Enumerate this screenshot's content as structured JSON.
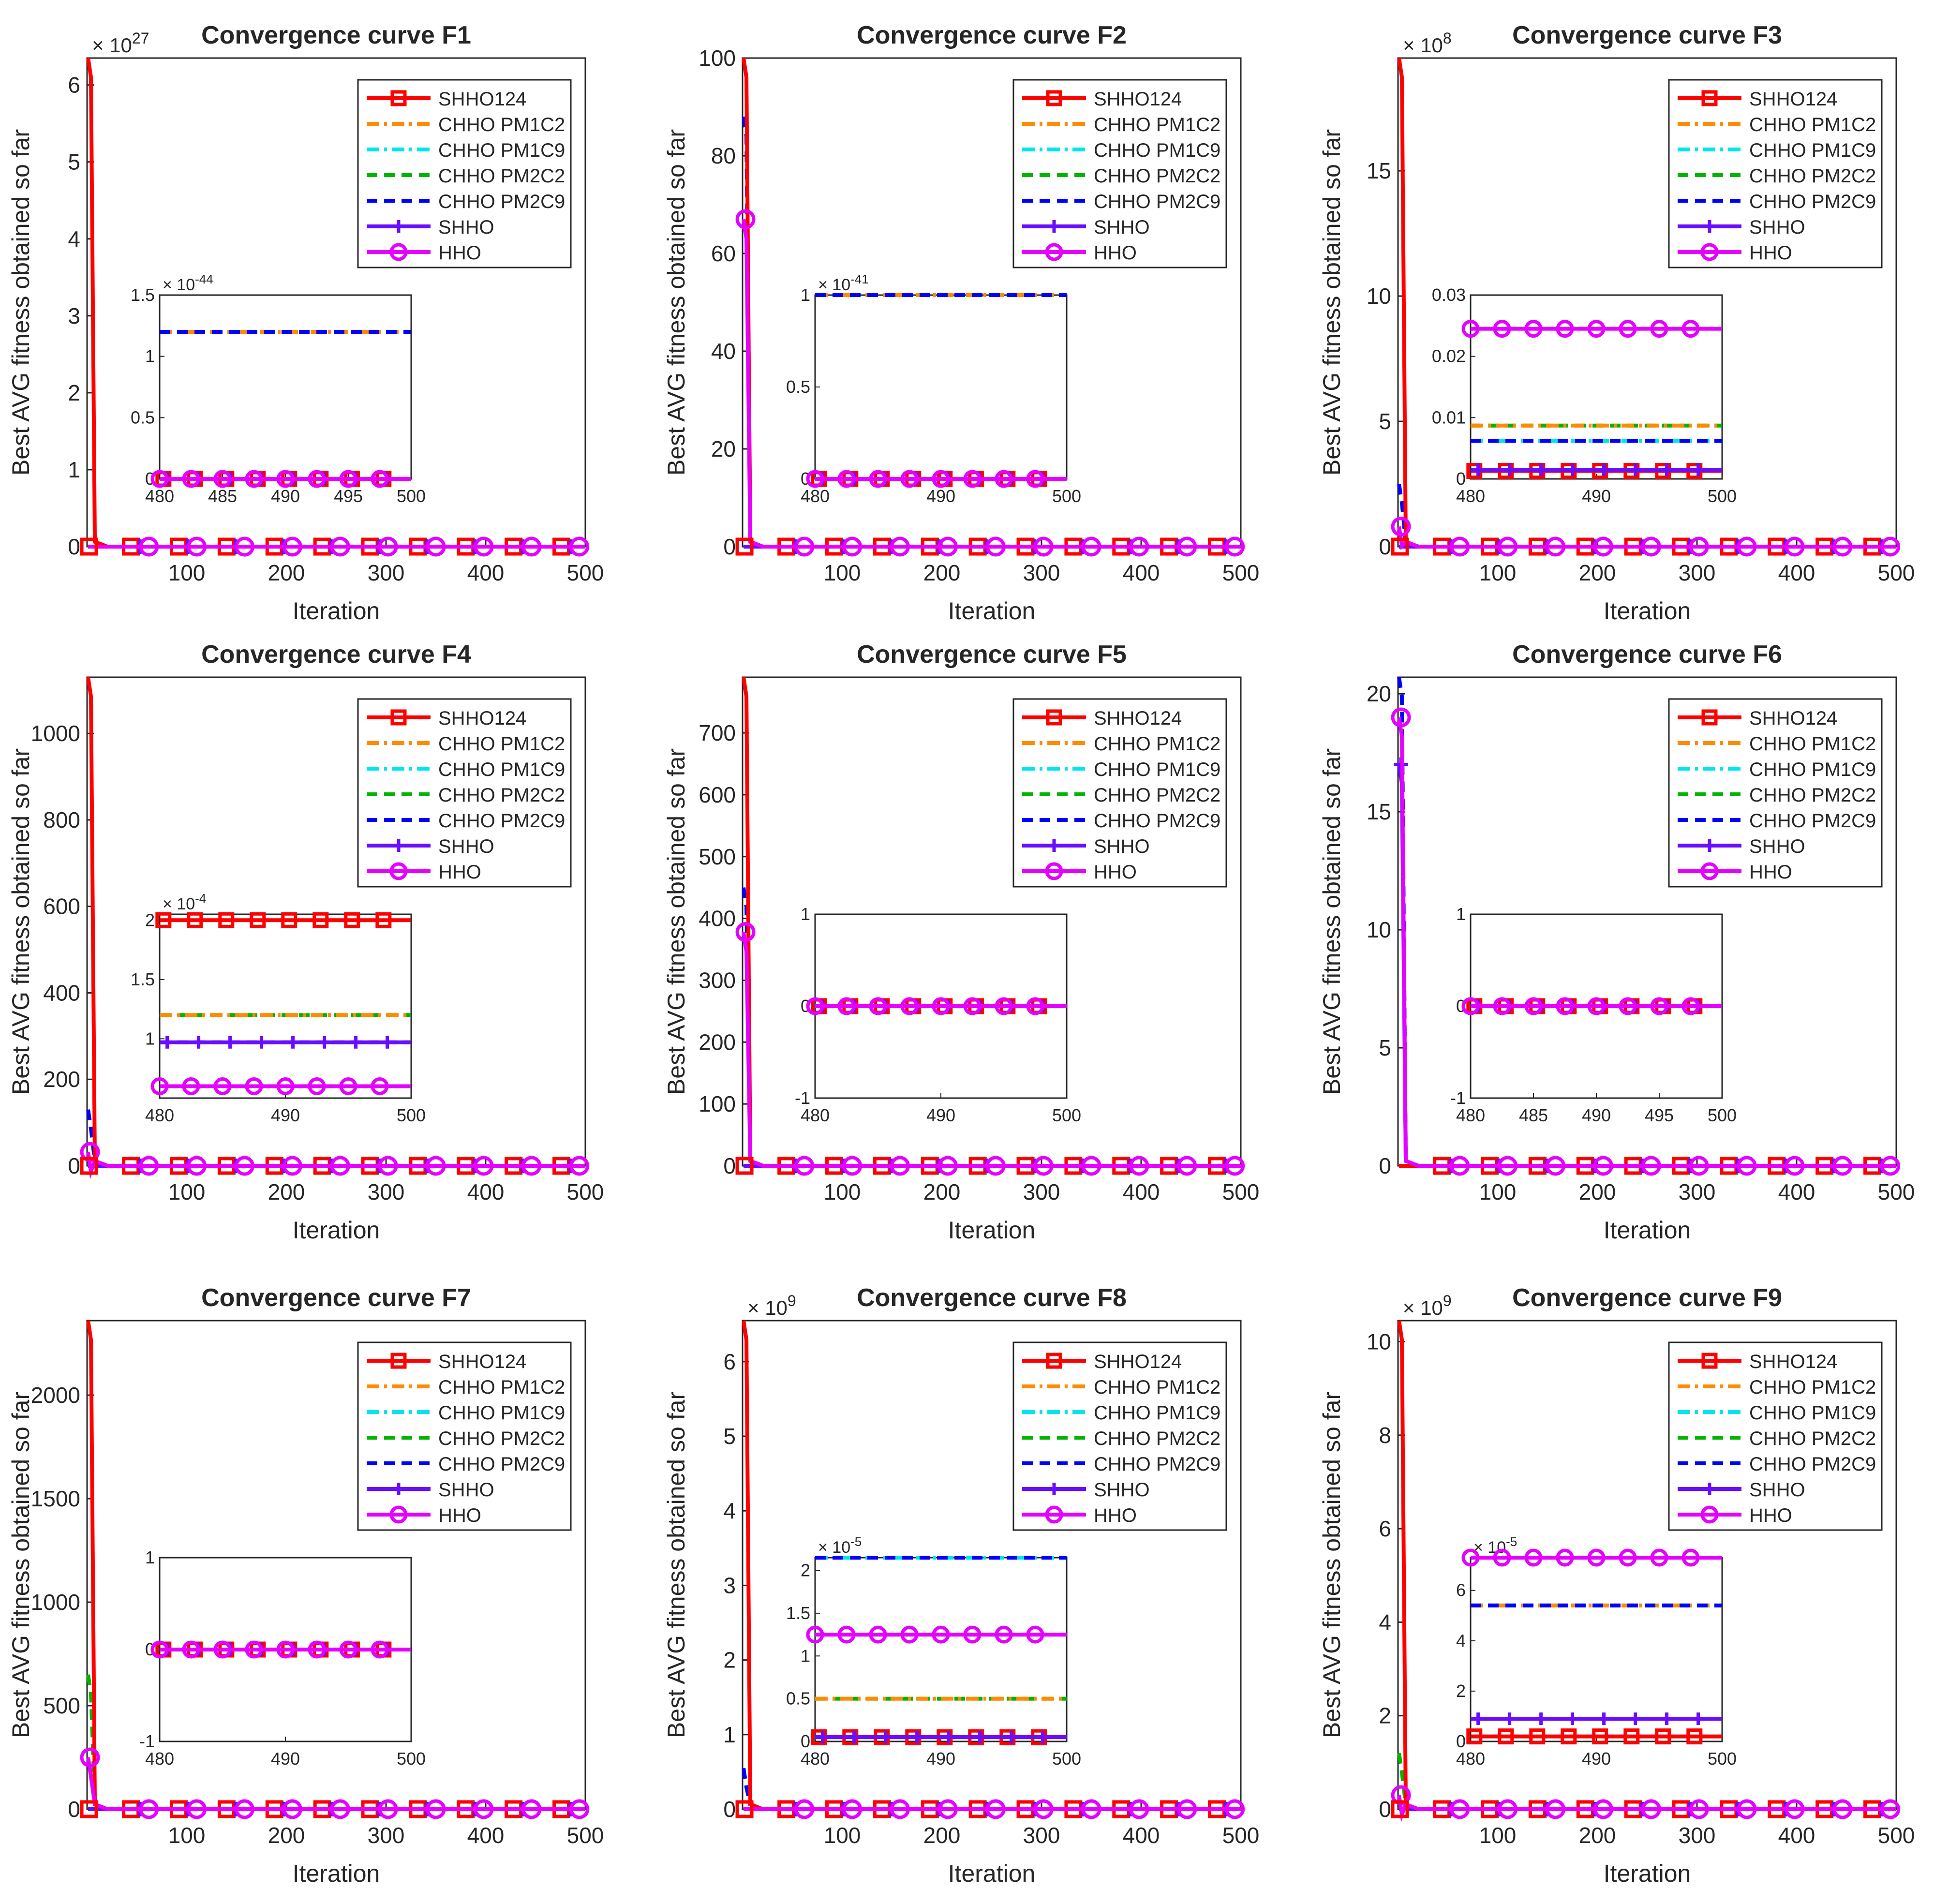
{
  "figure": {
    "common_ylabel": "Best AVG fitness obtained so far",
    "common_xlabel": "Iteration",
    "legend_labels": [
      "SHHO124",
      "CHHO PM1C2",
      "CHHO PM1C9",
      "CHHO PM2C2",
      "CHHO PM2C9",
      "SHHO",
      "HHO"
    ],
    "colors": {
      "SHHO124": "#ff0000",
      "CHHO PM1C2": "#ff8c00",
      "CHHO PM1C9": "#00e5ee",
      "CHHO PM2C2": "#00b400",
      "CHHO PM2C9": "#0000ff",
      "SHHO": "#6a0dff",
      "HHO": "#e600ff"
    }
  },
  "chart_data": [
    {
      "id": "F1",
      "type": "line",
      "title": "Convergence curve F1",
      "xlabel": "Iteration",
      "ylabel": "Best AVG fitness obtained so far",
      "xlim": [
        0,
        500
      ],
      "ylim": [
        0,
        6.35
      ],
      "yticks": [
        0,
        1,
        2,
        3,
        4,
        5,
        6
      ],
      "xticks": [
        100,
        200,
        300,
        400,
        500
      ],
      "yexp": "27",
      "ylabels": [
        "0",
        "1",
        "2",
        "3",
        "4",
        "5",
        "6"
      ],
      "xlabels": [
        "100",
        "200",
        "300",
        "400",
        "500"
      ],
      "spike": {
        "SHHO124": 6.35
      },
      "inset": {
        "xlim": [
          480,
          500
        ],
        "ylim": [
          0,
          1.5
        ],
        "xticks": [
          480,
          485,
          490,
          495,
          500
        ],
        "yticks": [
          0,
          0.5,
          1,
          1.5
        ],
        "ylabels": [
          "0",
          "0.5",
          "1",
          "1.5"
        ],
        "xlabels": [
          "480",
          "485",
          "490",
          "495",
          "500"
        ],
        "yexp": "-44",
        "series": {
          "SHHO124": 0,
          "CHHO PM1C2": 1.2,
          "CHHO PM1C9": 1.2,
          "CHHO PM2C2": 1.2,
          "CHHO PM2C9": 1.2,
          "SHHO": 0,
          "HHO": 0
        }
      }
    },
    {
      "id": "F2",
      "type": "line",
      "title": "Convergence curve F2",
      "xlabel": "Iteration",
      "ylabel": "Best AVG fitness obtained so far",
      "xlim": [
        0,
        500
      ],
      "ylim": [
        0,
        100
      ],
      "yticks": [
        0,
        20,
        40,
        60,
        80,
        100
      ],
      "xticks": [
        100,
        200,
        300,
        400,
        500
      ],
      "yexp": "",
      "ylabels": [
        "0",
        "20",
        "40",
        "60",
        "80",
        "100"
      ],
      "xlabels": [
        "100",
        "200",
        "300",
        "400",
        "500"
      ],
      "spike": {
        "SHHO124": 100,
        "CHHO PM2C9": 88,
        "HHO": 67
      },
      "inset": {
        "xlim": [
          480,
          500
        ],
        "ylim": [
          0,
          1
        ],
        "xticks": [
          480,
          490,
          500
        ],
        "yticks": [
          0,
          0.5,
          1
        ],
        "ylabels": [
          "0",
          "0.5",
          "1"
        ],
        "xlabels": [
          "480",
          "490",
          "500"
        ],
        "yexp": "-41",
        "series": {
          "SHHO124": 0,
          "CHHO PM1C2": 1,
          "CHHO PM1C9": 1,
          "CHHO PM2C2": 1,
          "CHHO PM2C9": 1,
          "SHHO": 0,
          "HHO": 0
        }
      }
    },
    {
      "id": "F3",
      "type": "line",
      "title": "Convergence curve F3",
      "xlabel": "Iteration",
      "ylabel": "Best AVG fitness obtained so far",
      "xlim": [
        0,
        500
      ],
      "ylim": [
        0,
        19.5
      ],
      "yticks": [
        0,
        5,
        10,
        15
      ],
      "xticks": [
        100,
        200,
        300,
        400,
        500
      ],
      "yexp": "8",
      "ylabels": [
        "0",
        "5",
        "10",
        "15"
      ],
      "xlabels": [
        "100",
        "200",
        "300",
        "400",
        "500"
      ],
      "spike": {
        "SHHO124": 19.5,
        "CHHO PM2C9": 2.5,
        "HHO": 0.8
      },
      "inset": {
        "xlim": [
          480,
          500
        ],
        "ylim": [
          0,
          0.03
        ],
        "xticks": [
          480,
          490,
          500
        ],
        "yticks": [
          0,
          0.01,
          0.02,
          0.03
        ],
        "ylabels": [
          "0",
          "0.01",
          "0.02",
          "0.03"
        ],
        "xlabels": [
          "480",
          "490",
          "500"
        ],
        "yexp": "",
        "series": {
          "SHHO124": 0.0013,
          "CHHO PM1C2": 0.0087,
          "CHHO PM1C9": 0.0062,
          "CHHO PM2C2": 0.0087,
          "CHHO PM2C9": 0.0062,
          "SHHO": 0.0015,
          "HHO": 0.0245
        }
      }
    },
    {
      "id": "F4",
      "type": "line",
      "title": "Convergence curve F4",
      "xlabel": "Iteration",
      "ylabel": "Best AVG fitness obtained so far",
      "xlim": [
        0,
        500
      ],
      "ylim": [
        0,
        1130
      ],
      "yticks": [
        0,
        200,
        400,
        600,
        800,
        1000
      ],
      "xticks": [
        100,
        200,
        300,
        400,
        500
      ],
      "yexp": "",
      "ylabels": [
        "0",
        "200",
        "400",
        "600",
        "800",
        "1000"
      ],
      "xlabels": [
        "100",
        "200",
        "300",
        "400",
        "500"
      ],
      "spike": {
        "SHHO124": 1130,
        "CHHO PM2C9": 130,
        "HHO": 32
      },
      "inset": {
        "xlim": [
          480,
          500
        ],
        "ylim": [
          0.5,
          2.05
        ],
        "xticks": [
          480,
          490,
          500
        ],
        "yticks": [
          1,
          1.5,
          2
        ],
        "ylabels": [
          "1",
          "1.5",
          "2"
        ],
        "xlabels": [
          "480",
          "490",
          "500"
        ],
        "yexp": "-4",
        "series": {
          "SHHO124": 2.0,
          "CHHO PM1C2": 1.2,
          "CHHO PM1C9": 1.2,
          "CHHO PM2C2": 1.2,
          "CHHO PM2C9": 0.97,
          "SHHO": 0.97,
          "HHO": 0.6
        }
      }
    },
    {
      "id": "F5",
      "type": "line",
      "title": "Convergence curve F5",
      "xlabel": "Iteration",
      "ylabel": "Best AVG fitness obtained so far",
      "xlim": [
        0,
        500
      ],
      "ylim": [
        0,
        790
      ],
      "yticks": [
        0,
        100,
        200,
        300,
        400,
        500,
        600,
        700
      ],
      "xticks": [
        100,
        200,
        300,
        400,
        500
      ],
      "yexp": "",
      "ylabels": [
        "0",
        "100",
        "200",
        "300",
        "400",
        "500",
        "600",
        "700"
      ],
      "xlabels": [
        "100",
        "200",
        "300",
        "400",
        "500"
      ],
      "spike": {
        "SHHO124": 790,
        "CHHO PM2C9": 450,
        "HHO": 378
      },
      "inset": {
        "xlim": [
          480,
          500
        ],
        "ylim": [
          -1,
          1
        ],
        "xticks": [
          480,
          490,
          500
        ],
        "yticks": [
          -1,
          0,
          1
        ],
        "ylabels": [
          "-1",
          "0",
          "1"
        ],
        "xlabels": [
          "480",
          "490",
          "500"
        ],
        "yexp": "",
        "series": {
          "SHHO124": 0,
          "CHHO PM1C2": 0,
          "CHHO PM1C9": 0,
          "CHHO PM2C2": 0,
          "CHHO PM2C9": 0,
          "SHHO": 0,
          "HHO": 0
        }
      }
    },
    {
      "id": "F6",
      "type": "line",
      "title": "Convergence curve F6",
      "xlabel": "Iteration",
      "ylabel": "Best AVG fitness obtained so far",
      "xlim": [
        0,
        500
      ],
      "ylim": [
        0,
        20.7
      ],
      "yticks": [
        0,
        5,
        10,
        15,
        20
      ],
      "xticks": [
        100,
        200,
        300,
        400,
        500
      ],
      "yexp": "",
      "ylabels": [
        "0",
        "5",
        "10",
        "15",
        "20"
      ],
      "xlabels": [
        "100",
        "200",
        "300",
        "400",
        "500"
      ],
      "spike": {
        "CHHO PM2C9": 20.7,
        "HHO": 19,
        "SHHO": 17
      },
      "inset": {
        "xlim": [
          480,
          500
        ],
        "ylim": [
          -1,
          1
        ],
        "xticks": [
          480,
          485,
          490,
          495,
          500
        ],
        "yticks": [
          -1,
          0,
          1
        ],
        "ylabels": [
          "-1",
          "0",
          "1"
        ],
        "xlabels": [
          "480",
          "485",
          "490",
          "495",
          "500"
        ],
        "yexp": "",
        "series": {
          "SHHO124": 0,
          "CHHO PM1C2": 0,
          "CHHO PM1C9": 0,
          "CHHO PM2C2": 0,
          "CHHO PM2C9": 0,
          "SHHO": 0,
          "HHO": 0
        }
      }
    },
    {
      "id": "F7",
      "type": "line",
      "title": "Convergence curve F7",
      "xlabel": "Iteration",
      "ylabel": "Best AVG fitness obtained so far",
      "xlim": [
        0,
        500
      ],
      "ylim": [
        0,
        2360
      ],
      "yticks": [
        0,
        500,
        1000,
        1500,
        2000
      ],
      "xticks": [
        100,
        200,
        300,
        400,
        500
      ],
      "yexp": "",
      "ylabels": [
        "0",
        "500",
        "1000",
        "1500",
        "2000"
      ],
      "xlabels": [
        "100",
        "200",
        "300",
        "400",
        "500"
      ],
      "spike": {
        "SHHO124": 2360,
        "CHHO PM2C2": 650,
        "HHO": 250
      },
      "inset": {
        "xlim": [
          480,
          500
        ],
        "ylim": [
          -1,
          1
        ],
        "xticks": [
          480,
          490,
          500
        ],
        "yticks": [
          -1,
          0,
          1
        ],
        "ylabels": [
          "-1",
          "0",
          "1"
        ],
        "xlabels": [
          "480",
          "490",
          "500"
        ],
        "yexp": "",
        "series": {
          "SHHO124": 0,
          "CHHO PM1C2": 0,
          "CHHO PM1C9": 0,
          "CHHO PM2C2": 0,
          "CHHO PM2C9": 0,
          "SHHO": 0,
          "HHO": 0
        }
      }
    },
    {
      "id": "F8",
      "type": "line",
      "title": "Convergence curve F8",
      "xlabel": "Iteration",
      "ylabel": "Best AVG fitness obtained so far",
      "xlim": [
        0,
        500
      ],
      "ylim": [
        0,
        6.55
      ],
      "yticks": [
        0,
        1,
        2,
        3,
        4,
        5,
        6
      ],
      "xticks": [
        100,
        200,
        300,
        400,
        500
      ],
      "yexp": "9",
      "ylabels": [
        "0",
        "1",
        "2",
        "3",
        "4",
        "5",
        "6"
      ],
      "xlabels": [
        "100",
        "200",
        "300",
        "400",
        "500"
      ],
      "spike": {
        "SHHO124": 6.55,
        "CHHO PM2C9": 0.55
      },
      "inset": {
        "xlim": [
          480,
          500
        ],
        "ylim": [
          0,
          2.15
        ],
        "xticks": [
          480,
          490,
          500
        ],
        "yticks": [
          0,
          0.5,
          1,
          1.5,
          2
        ],
        "ylabels": [
          "0",
          "0.5",
          "1",
          "1.5",
          "2"
        ],
        "xlabels": [
          "480",
          "490",
          "500"
        ],
        "yexp": "-5",
        "series": {
          "SHHO124": 0.05,
          "CHHO PM1C2": 0.5,
          "CHHO PM1C9": 2.15,
          "CHHO PM2C2": 0.5,
          "CHHO PM2C9": 2.15,
          "SHHO": 0.05,
          "HHO": 1.25
        }
      }
    },
    {
      "id": "F9",
      "type": "line",
      "title": "Convergence curve F9",
      "xlabel": "Iteration",
      "ylabel": "Best AVG fitness obtained so far",
      "xlim": [
        0,
        500
      ],
      "ylim": [
        0,
        10.45
      ],
      "yticks": [
        0,
        2,
        4,
        6,
        8,
        10
      ],
      "xticks": [
        100,
        200,
        300,
        400,
        500
      ],
      "yexp": "9",
      "ylabels": [
        "0",
        "2",
        "4",
        "6",
        "8",
        "10"
      ],
      "xlabels": [
        "100",
        "200",
        "300",
        "400",
        "500"
      ],
      "spike": {
        "SHHO124": 10.45,
        "CHHO PM2C2": 1.2,
        "HHO": 0.3
      },
      "inset": {
        "xlim": [
          480,
          500
        ],
        "ylim": [
          0,
          7.3
        ],
        "xticks": [
          480,
          490,
          500
        ],
        "yticks": [
          0,
          2,
          4,
          6
        ],
        "ylabels": [
          "0",
          "2",
          "4",
          "6"
        ],
        "xlabels": [
          "480",
          "490",
          "500"
        ],
        "yexp": "-5",
        "series": {
          "SHHO124": 0.2,
          "CHHO PM1C2": 5.4,
          "CHHO PM1C9": 5.4,
          "CHHO PM2C2": 5.4,
          "CHHO PM2C9": 5.4,
          "SHHO": 0.9,
          "HHO": 7.3
        }
      }
    }
  ]
}
